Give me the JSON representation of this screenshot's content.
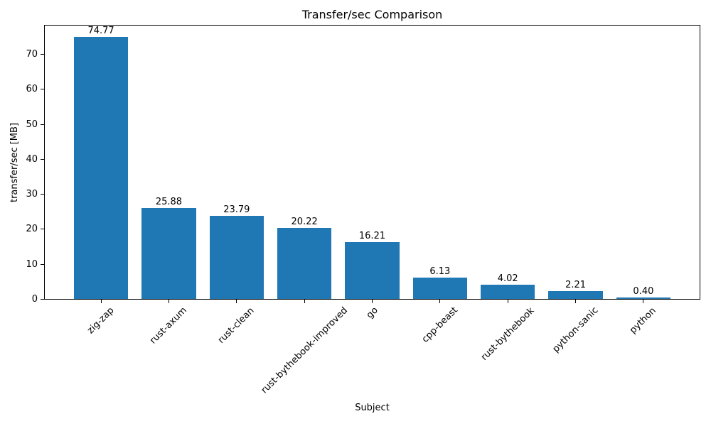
{
  "chart_data": {
    "type": "bar",
    "title": "Transfer/sec Comparison",
    "xlabel": "Subject",
    "ylabel": "transfer/sec [MB]",
    "categories": [
      "zig-zap",
      "rust-axum",
      "rust-clean",
      "rust-bythebook-improved",
      "go",
      "cpp-beast",
      "rust-bythebook",
      "python-sanic",
      "python"
    ],
    "values": [
      74.77,
      25.88,
      23.79,
      20.22,
      16.21,
      6.13,
      4.02,
      2.21,
      0.4
    ],
    "value_labels": [
      "74.77",
      "25.88",
      "23.79",
      "20.22",
      "16.21",
      "6.13",
      "4.02",
      "2.21",
      "0.40"
    ],
    "bar_color": "#1f77b4",
    "axis_color": "#000000",
    "text_color": "#000000",
    "background_color": "#ffffff",
    "ylim": [
      0,
      78.5
    ],
    "yticks": [
      0,
      10,
      20,
      30,
      40,
      50,
      60,
      70
    ],
    "bar_rel_width": 0.8,
    "x_margin_frac": 0.05,
    "xtick_rotation_deg": 45,
    "grid": false,
    "legend": null
  }
}
